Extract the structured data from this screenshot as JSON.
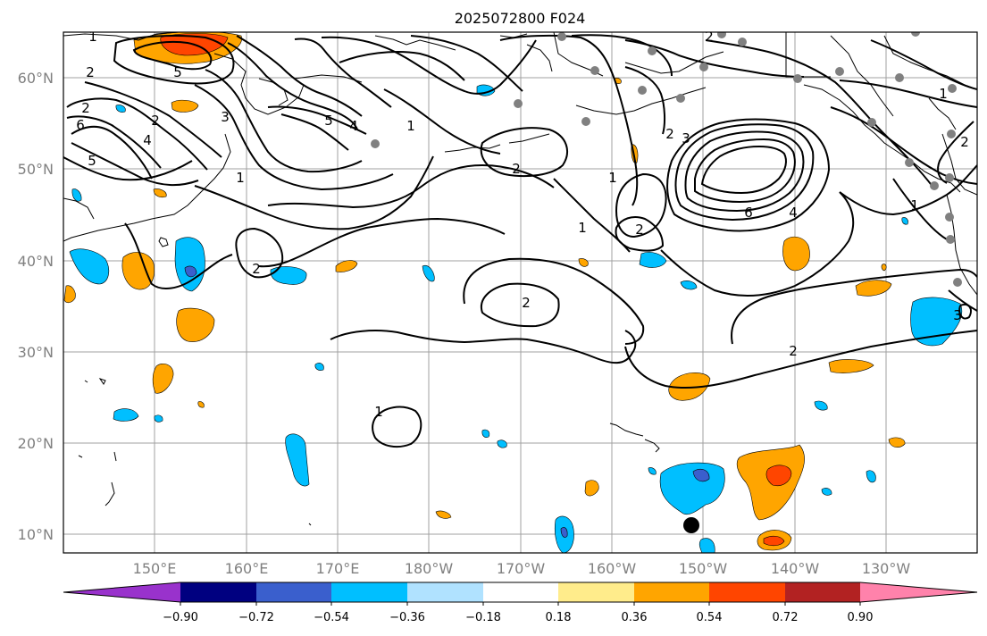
{
  "title": "2025072800 F024",
  "lat_labels": [
    "60°N",
    "50°N",
    "40°N",
    "30°N",
    "20°N",
    "10°N"
  ],
  "lon_labels": [
    "150°E",
    "160°E",
    "170°E",
    "180°W",
    "170°W",
    "160°W",
    "150°W",
    "140°W",
    "130°W"
  ],
  "colorbar": {
    "ticks": [
      "−0.90",
      "−0.72",
      "−0.54",
      "−0.36",
      "−0.18",
      "0.18",
      "0.36",
      "0.54",
      "0.72",
      "0.90"
    ],
    "colors": [
      "#9932cc",
      "#000080",
      "#3a5fcd",
      "#00bfff",
      "#b0e2ff",
      "#ffffff",
      "#ffec8b",
      "#ffa500",
      "#ff4500",
      "#b22222",
      "#ff82ab"
    ]
  },
  "contour_labels": [
    "1",
    "2",
    "5",
    "2",
    "2",
    "6",
    "5",
    "3",
    "4",
    "5",
    "4",
    "1",
    "2",
    "1",
    "1",
    "2",
    "2",
    "2",
    "3",
    "6",
    "4",
    "1",
    "2",
    "1",
    "1",
    "2",
    "2",
    "3",
    "2",
    "1"
  ],
  "colors": {
    "grid": "#a0a0a0",
    "station": "#808080",
    "coast": "#000000"
  }
}
